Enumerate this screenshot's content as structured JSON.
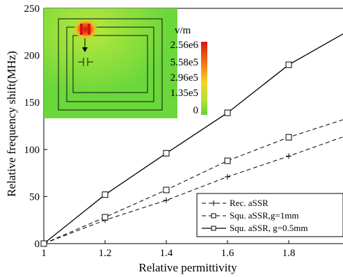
{
  "chart_data": {
    "type": "line",
    "xlabel": "Relative permittivity",
    "ylabel": "Relative frequency shift(MHz)",
    "xlim": [
      1,
      2
    ],
    "ylim": [
      0,
      250
    ],
    "xticks": [
      "1",
      "1.2",
      "1.4",
      "1.6",
      "1.8",
      ""
    ],
    "yticks": [
      "0",
      "50",
      "100",
      "150",
      "200",
      "250"
    ],
    "xtick_values": [
      1,
      1.2,
      1.4,
      1.6,
      1.8,
      2
    ],
    "ytick_values": [
      0,
      50,
      100,
      150,
      200,
      250
    ],
    "legend_position": "bottom-right",
    "series": [
      {
        "name": "Rec. aSSR",
        "marker": "plus",
        "dash": "dashed",
        "x": [
          1,
          1.2,
          1.4,
          1.6,
          1.8,
          2
        ],
        "y": [
          0,
          25,
          46,
          71,
          93,
          116
        ]
      },
      {
        "name": "Squ. aSSR,g=1mm",
        "marker": "square",
        "dash": "dashed",
        "x": [
          1,
          1.2,
          1.4,
          1.6,
          1.8,
          2
        ],
        "y": [
          0,
          28,
          57,
          88,
          113,
          134
        ]
      },
      {
        "name": "Squ. aSSR, g=0.5mm",
        "marker": "square",
        "dash": "solid",
        "x": [
          1,
          1.2,
          1.4,
          1.6,
          1.8,
          2
        ],
        "y": [
          0,
          52,
          96,
          139,
          190,
          227
        ]
      }
    ]
  },
  "inset": {
    "colorbar_unit": "v/m",
    "colorbar_labels": [
      "2.56e6",
      "5.58e5",
      "2.96e5",
      "1.35e5",
      "0"
    ],
    "colors": {
      "high": "#e21a12",
      "mid": "#f3c21d",
      "low": "#8ee233",
      "background": "#6bd83a"
    }
  }
}
